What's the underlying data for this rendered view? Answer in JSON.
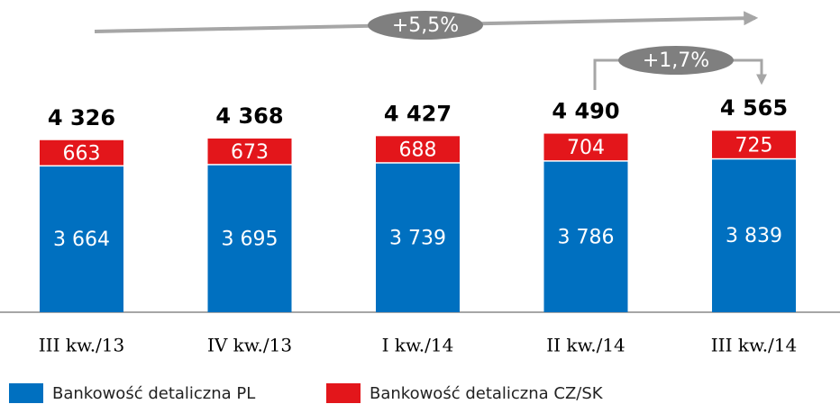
{
  "chart_data": {
    "type": "stacked_bar",
    "categories": [
      "III kw./13",
      "IV kw./13",
      "I kw./14",
      "II kw./14",
      "III kw./14"
    ],
    "series": [
      {
        "name": "Bankowość detaliczna PL",
        "color": "#0070c0",
        "values": [
          3664,
          3695,
          3739,
          3786,
          3839
        ],
        "value_labels": [
          "3 664",
          "3 695",
          "3 739",
          "3 786",
          "3 839"
        ]
      },
      {
        "name": "Bankowość detaliczna CZ/SK",
        "color": "#e3161b",
        "values": [
          663,
          673,
          688,
          704,
          725
        ],
        "value_labels": [
          "663",
          "673",
          "688",
          "704",
          "725"
        ]
      }
    ],
    "totals": [
      4326,
      4368,
      4427,
      4490,
      4565
    ],
    "total_labels": [
      "4 326",
      "4 368",
      "4 427",
      "4 490",
      "4 565"
    ],
    "annotations": [
      "+5,5%",
      "+1,7%"
    ]
  }
}
